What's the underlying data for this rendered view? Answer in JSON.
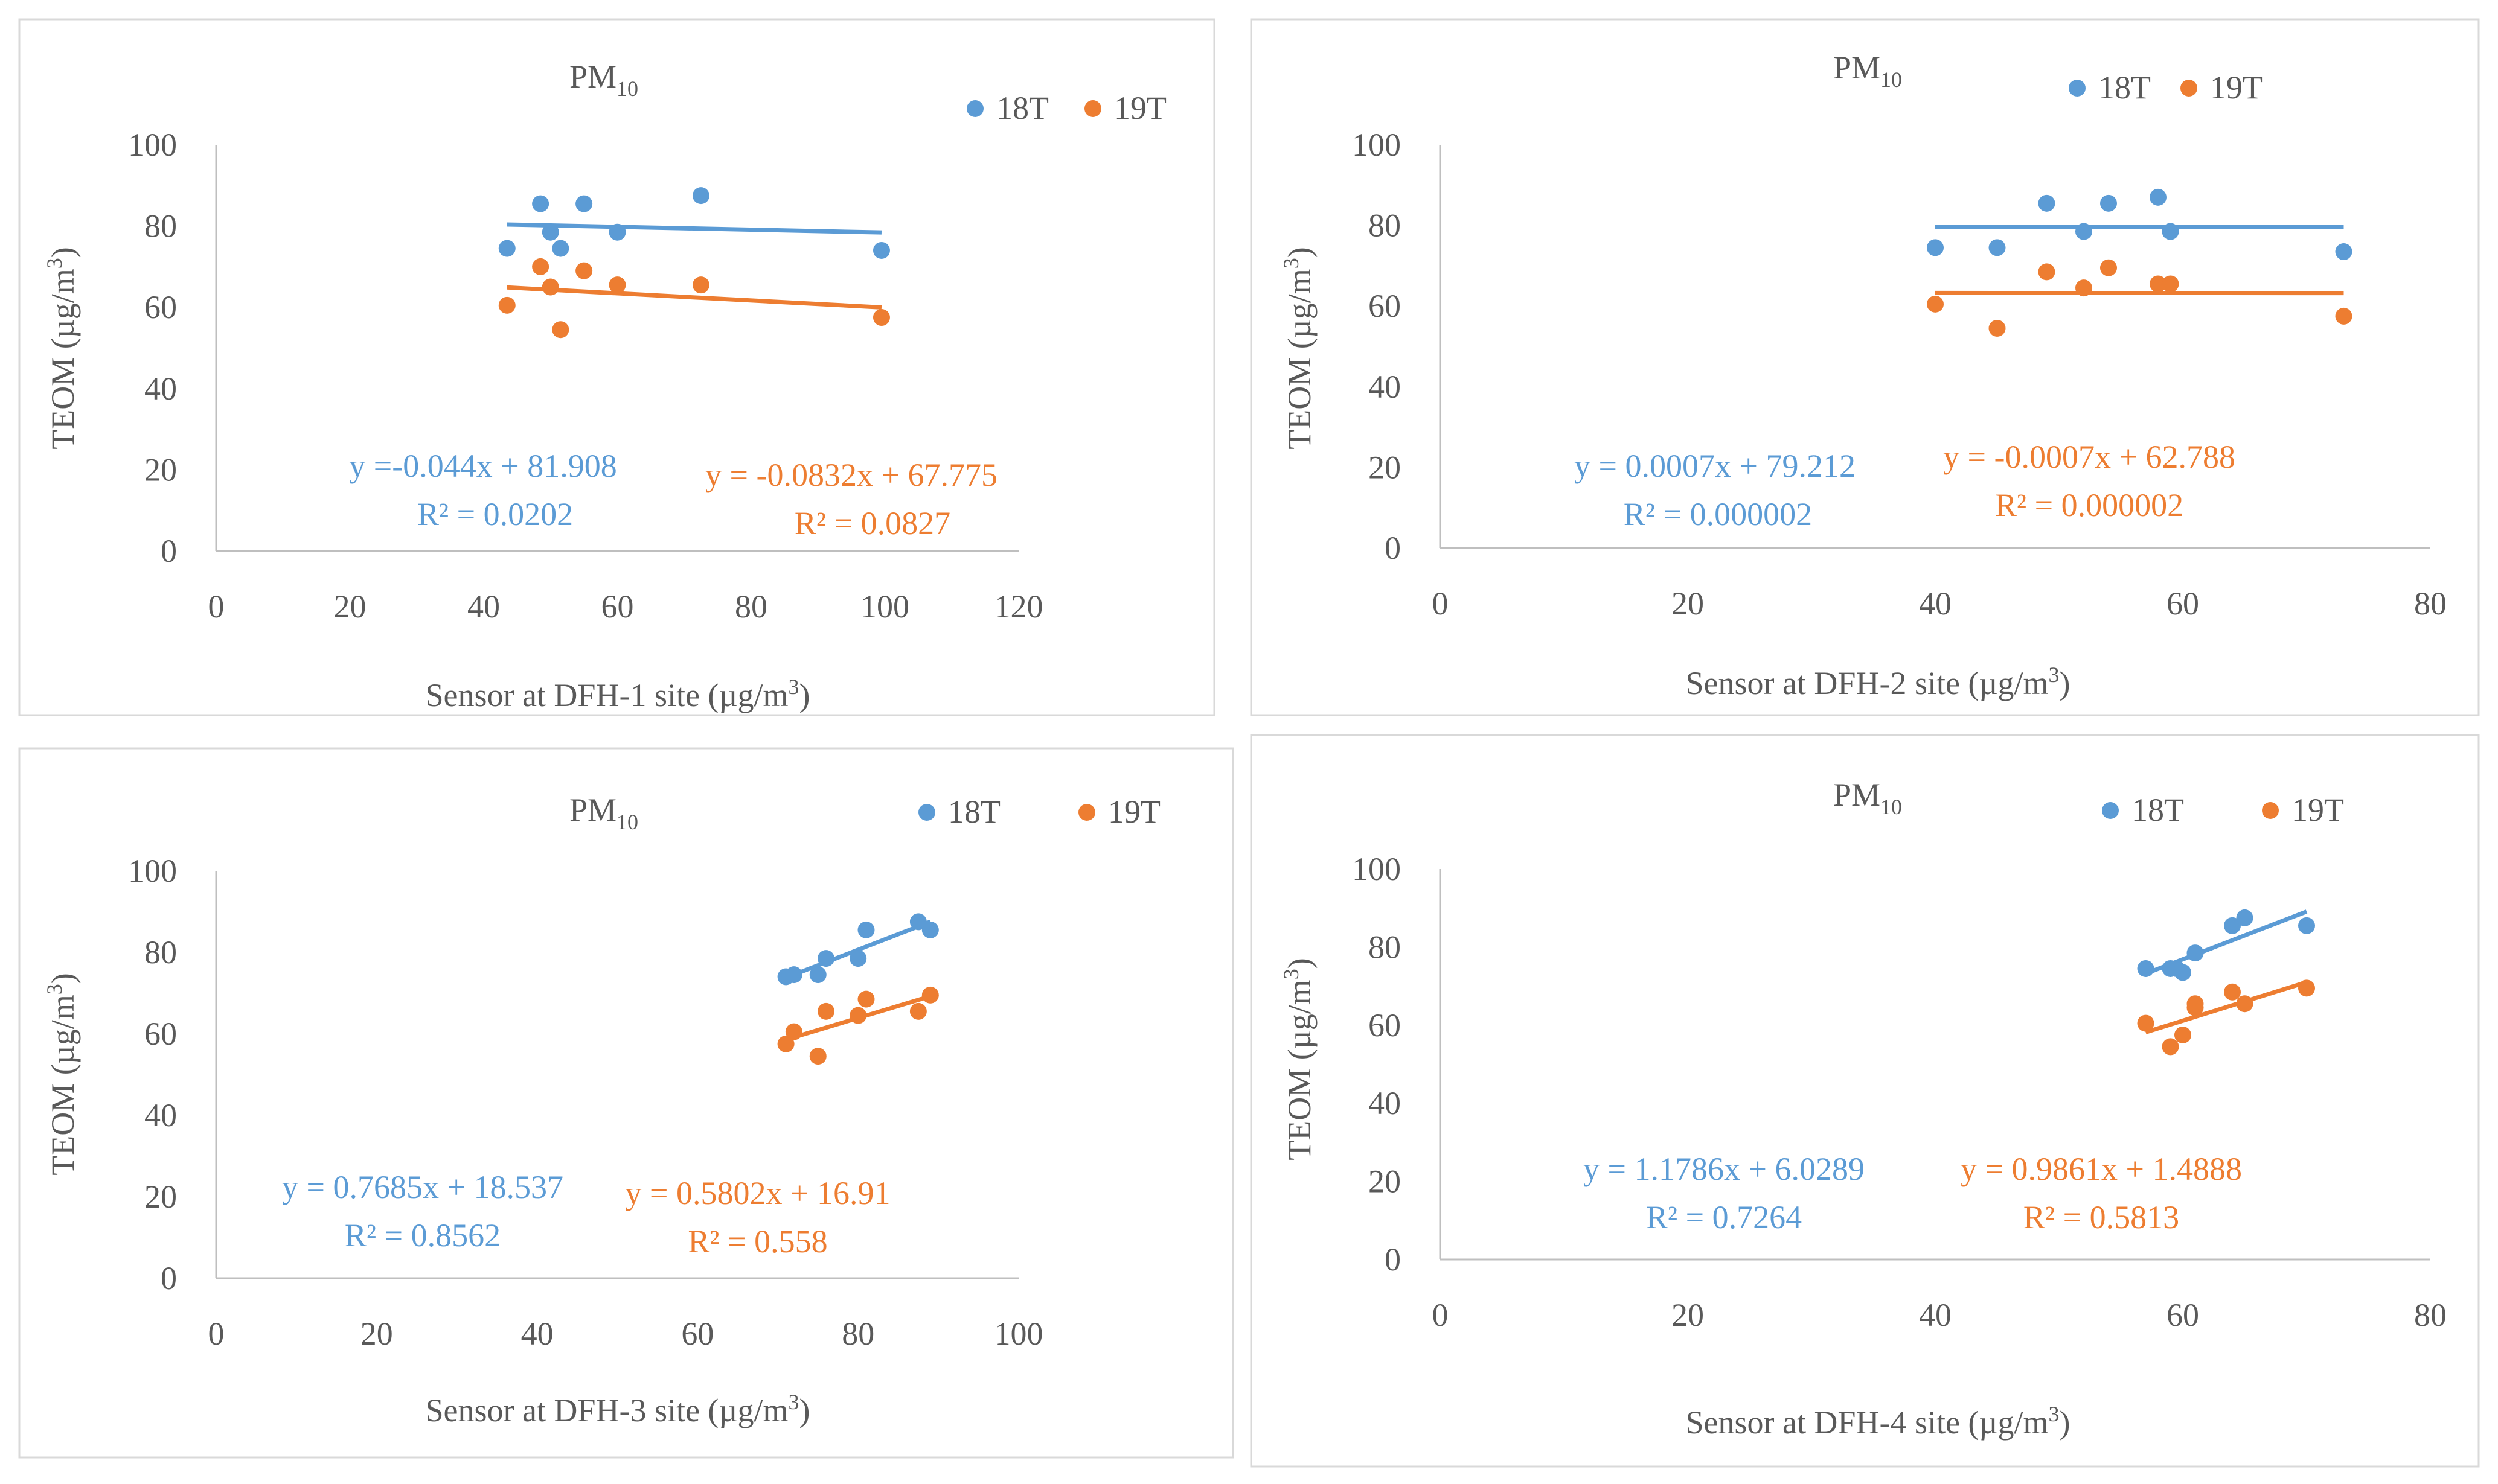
{
  "colors": {
    "s18": "#5B9BD5",
    "s19": "#ED7D31",
    "axis": "#BFBFBF",
    "text": "#595959",
    "border": "#D9D9D9"
  },
  "chart_data": [
    {
      "type": "scatter",
      "title": "PM",
      "title_sub": "10",
      "ylabel": "TEOM (µg/m",
      "ylabel_sup": "3",
      "ylabel_close": ")",
      "xlabel": "Sensor  at DFH-1 site (µg/m",
      "xlabel_sup": "3",
      "xlabel_close": ")",
      "xlim": [
        0,
        120
      ],
      "xticks": [
        0,
        20,
        40,
        60,
        80,
        100,
        120
      ],
      "ylim": [
        0,
        100
      ],
      "yticks": [
        0,
        20,
        40,
        60,
        80,
        100
      ],
      "series": [
        {
          "name": "18T",
          "x": [
            43.5,
            48.5,
            50,
            51.5,
            55,
            60,
            72.5,
            99.5
          ],
          "y": [
            74.5,
            85.5,
            78.5,
            74.5,
            85.5,
            78.5,
            87.5,
            74
          ],
          "trend": {
            "x0": 43.5,
            "x1": 99.5,
            "eq": "y =-0.044x + 81.908",
            "r2": "R² = 0.0202"
          }
        },
        {
          "name": "19T",
          "x": [
            43.5,
            48.5,
            50,
            51.5,
            55,
            60,
            72.5,
            99.5
          ],
          "y": [
            60.5,
            70,
            65,
            54.5,
            69,
            65.5,
            65.5,
            57.5
          ],
          "trend": {
            "x0": 43.5,
            "x1": 99.5,
            "eq": "y = -0.0832x + 67.775",
            "r2": "R² = 0.0827"
          }
        }
      ]
    },
    {
      "type": "scatter",
      "title": "PM",
      "title_sub": "10",
      "ylabel": "TEOM (µg/m",
      "ylabel_sup": "3",
      "ylabel_close": ")",
      "xlabel": "Sensor  at DFH-2 site (µg/m",
      "xlabel_sup": "3",
      "xlabel_close": ")",
      "xlim": [
        0,
        80
      ],
      "xticks": [
        0,
        20,
        40,
        60,
        80
      ],
      "ylim": [
        0,
        100
      ],
      "yticks": [
        0,
        20,
        40,
        60,
        80,
        100
      ],
      "series": [
        {
          "name": "18T",
          "x": [
            40,
            45,
            49,
            52,
            54,
            58,
            59,
            73
          ],
          "y": [
            74.5,
            74.5,
            85.5,
            78.5,
            85.5,
            87,
            78.5,
            73.5
          ],
          "trend": {
            "x0": 40,
            "x1": 73,
            "eq": "y = 0.0007x + 79.212",
            "r2": "R² = 0.000002"
          }
        },
        {
          "name": "19T",
          "x": [
            40,
            45,
            49,
            52,
            54,
            58,
            59,
            73
          ],
          "y": [
            60.5,
            54.5,
            68.5,
            64.5,
            69.5,
            65.5,
            65.5,
            57.5
          ],
          "trend": {
            "x0": 40,
            "x1": 73,
            "eq": "y = -0.0007x + 62.788",
            "r2": "R² = 0.000002"
          }
        }
      ]
    },
    {
      "type": "scatter",
      "title": "PM",
      "title_sub": "10",
      "ylabel": "TEOM (µg/m",
      "ylabel_sup": "3",
      "ylabel_close": ")",
      "xlabel": "Sensor  at DFH-3 site (µg/m",
      "xlabel_sup": "3",
      "xlabel_close": ")",
      "xlim": [
        0,
        100
      ],
      "xticks": [
        0,
        20,
        40,
        60,
        80,
        100
      ],
      "ylim": [
        0,
        100
      ],
      "yticks": [
        0,
        20,
        40,
        60,
        80,
        100
      ],
      "series": [
        {
          "name": "18T",
          "x": [
            71,
            72,
            75,
            76,
            80,
            81,
            87.5,
            89
          ],
          "y": [
            74,
            74.5,
            74.5,
            78.5,
            78.5,
            85.5,
            87.5,
            85.5
          ],
          "trend": {
            "x0": 71,
            "x1": 89,
            "eq": "y = 0.7685x + 18.537",
            "r2": "R² = 0.8562"
          }
        },
        {
          "name": "19T",
          "x": [
            71,
            72,
            75,
            76,
            80,
            81,
            87.5,
            89
          ],
          "y": [
            57.5,
            60.5,
            54.5,
            65.5,
            64.5,
            68.5,
            65.5,
            69.5
          ],
          "trend": {
            "x0": 71,
            "x1": 89,
            "eq": "y = 0.5802x + 16.91",
            "r2": "R² = 0.558"
          }
        }
      ]
    },
    {
      "type": "scatter",
      "title": "PM",
      "title_sub": "10",
      "ylabel": "TEOM (µg/m",
      "ylabel_sup": "3",
      "ylabel_close": ")",
      "xlabel": "Sensor  at DFH-4 site  (µg/m",
      "xlabel_sup": "3",
      "xlabel_close": ")",
      "xlim": [
        0,
        80
      ],
      "xticks": [
        0,
        20,
        40,
        60,
        80
      ],
      "ylim": [
        0,
        100
      ],
      "yticks": [
        0,
        20,
        40,
        60,
        80,
        100
      ],
      "series": [
        {
          "name": "18T",
          "x": [
            57,
            59,
            60,
            61,
            64,
            65,
            70,
            59.5
          ],
          "y": [
            74.5,
            74.5,
            73.5,
            78.5,
            85.5,
            87.5,
            85.5,
            74.5
          ],
          "trend": {
            "x0": 57,
            "x1": 70,
            "eq": "y = 1.1786x + 6.0289",
            "r2": "R² = 0.7264"
          }
        },
        {
          "name": "19T",
          "x": [
            57,
            59,
            60,
            61,
            61,
            64,
            65,
            70
          ],
          "y": [
            60.5,
            54.5,
            57.5,
            64.5,
            65.5,
            68.5,
            65.5,
            69.5
          ],
          "trend": {
            "x0": 57,
            "x1": 70,
            "eq": "y = 0.9861x + 1.4888",
            "r2": "R² = 0.5813"
          }
        }
      ]
    }
  ]
}
